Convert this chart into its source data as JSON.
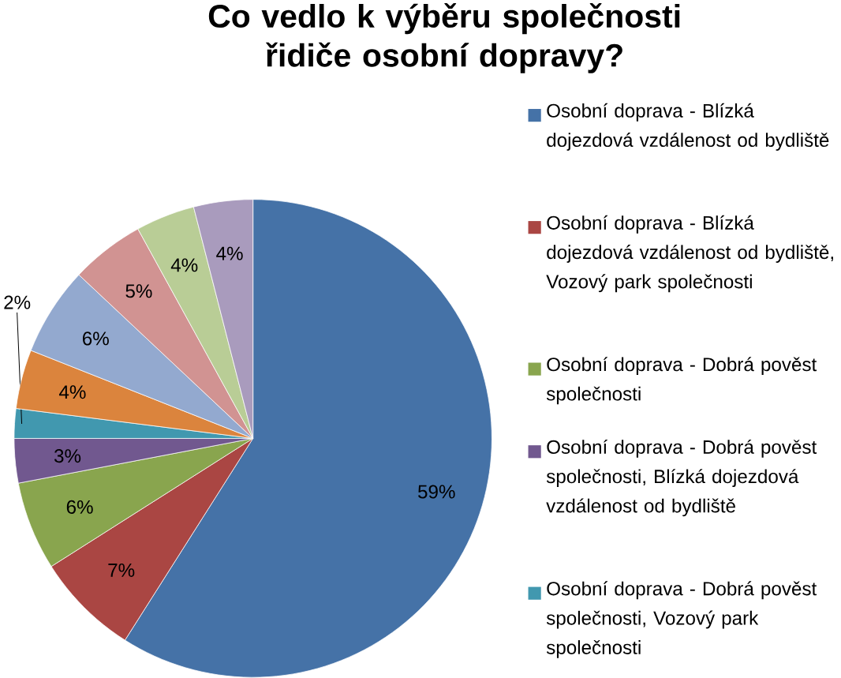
{
  "chart_data": {
    "type": "pie",
    "title": "Co vedlo k výběru společnosti řidiče osobní dopravy?",
    "categories": [
      "Osobní doprava - Blízká dojezdová vzdálenost od bydliště",
      "Osobní doprava - Blízká dojezdová vzdálenost od bydliště, Vozový park společnosti",
      "Osobní doprava - Dobrá pověst společnosti",
      "Osobní doprava - Dobrá pověst společnosti, Blízká dojezdová vzdálenost od bydliště",
      "Osobní doprava - Dobrá pověst společnosti, Vozový park společnosti",
      null,
      null,
      null,
      null,
      null
    ],
    "values": [
      59,
      7,
      6,
      3,
      2,
      4,
      6,
      5,
      4,
      4
    ],
    "value_labels": [
      "59%",
      "7%",
      "6%",
      "3%",
      "2%",
      "4%",
      "6%",
      "5%",
      "4%",
      "4%"
    ],
    "colors": [
      "#4572a7",
      "#aa4643",
      "#89a54e",
      "#71588f",
      "#4198af",
      "#db843d",
      "#93a9cf",
      "#d19392",
      "#b9cd96",
      "#a99bbd"
    ],
    "legend": "right"
  }
}
